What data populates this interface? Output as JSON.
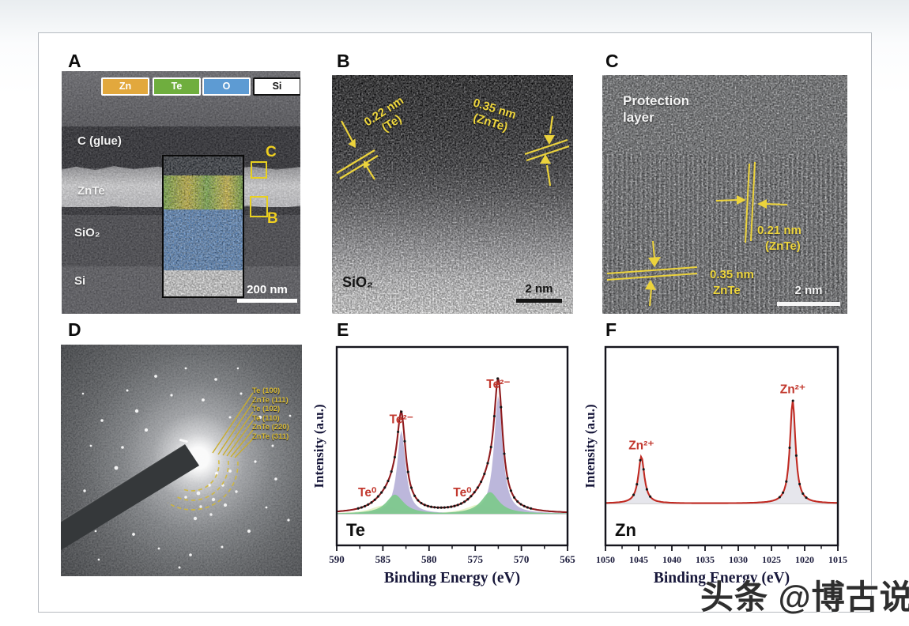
{
  "page": {
    "watermark": "头条 @博古说"
  },
  "figure": {
    "panels": {
      "a": {
        "label": "A",
        "legend": [
          {
            "label": "Zn",
            "color": "#e2a83d"
          },
          {
            "label": "Te",
            "color": "#6fae3e"
          },
          {
            "label": "O",
            "color": "#5d9bd3"
          },
          {
            "label": "Si",
            "color": "#ffffff"
          }
        ],
        "layers": [
          "C (glue)",
          "ZnTe",
          "SiO₂",
          "Si"
        ],
        "roi_top": "C",
        "roi_bottom": "B",
        "scale_bar": "200 nm"
      },
      "b": {
        "label": "B",
        "ann1_line1": "0.22 nm",
        "ann1_line2": "(Te)",
        "ann2_line1": "0.35 nm",
        "ann2_line2": "(ZnTe)",
        "corner": "SiO₂",
        "scale_bar": "2 nm"
      },
      "c": {
        "label": "C",
        "region_line1": "Protection",
        "region_line2": "layer",
        "ann1_line1": "0.21 nm",
        "ann1_line2": "(ZnTe)",
        "ann2_line1": "0.35 nm",
        "ann2_line2": "ZnTe",
        "scale_bar": "2 nm"
      },
      "d": {
        "label": "D",
        "ring_labels": [
          "Te (100)",
          "ZnTe (111)",
          "Te (102)",
          "Te (110)",
          "ZnTe (220)",
          "ZnTe (311)"
        ]
      },
      "e": {
        "label": "E"
      },
      "f": {
        "label": "F"
      }
    }
  },
  "chart_data": [
    {
      "type": "line",
      "panel": "E",
      "element_tag": "Te",
      "xlabel": "Binding Energy (eV)",
      "ylabel": "Intensity (a.u.)",
      "x_range": [
        590,
        565
      ],
      "x_ticks": [
        590,
        585,
        580,
        575,
        570,
        565
      ],
      "x_minor_step": 2.5,
      "x_axis_reversed": true,
      "ylim": [
        0,
        1
      ],
      "grid": false,
      "legend_position": "none",
      "line_color": "#8e1b1e",
      "dot_color": "#151515",
      "label_color": "#c2382e",
      "peaks": [
        {
          "species": "Te0 broad",
          "display": "",
          "center_eV": 584.9,
          "rel_height": 0.05,
          "hwhm_eV": 1.7,
          "fill": "#e3f2c6",
          "label_pos": "none"
        },
        {
          "species": "Te0 broad",
          "display": "",
          "center_eV": 574.6,
          "rel_height": 0.055,
          "hwhm_eV": 1.7,
          "fill": "#e3f2c6",
          "label_pos": "none"
        },
        {
          "species": "Te2-",
          "display": "Te²⁻",
          "center_eV": 583.0,
          "rel_height": 0.5,
          "hwhm_eV": 0.55,
          "fill": "#b6b1d8",
          "label_pos": "above"
        },
        {
          "species": "Te2-",
          "display": "Te²⁻",
          "center_eV": 572.5,
          "rel_height": 0.71,
          "hwhm_eV": 0.55,
          "fill": "#b6b1d8",
          "label_pos": "above"
        },
        {
          "species": "Te0",
          "display": "Te⁰",
          "center_eV": 583.7,
          "rel_height": 0.115,
          "hwhm_eV": 1.15,
          "fill": "#7dc98c",
          "label_pos": "left"
        },
        {
          "species": "Te0",
          "display": "Te⁰",
          "center_eV": 573.4,
          "rel_height": 0.13,
          "hwhm_eV": 1.15,
          "fill": "#7dc98c",
          "label_pos": "left"
        }
      ]
    },
    {
      "type": "line",
      "panel": "F",
      "element_tag": "Zn",
      "xlabel": "Binding Energy (eV)",
      "ylabel": "Intensity (a.u.)",
      "x_range": [
        1050,
        1015
      ],
      "x_ticks": [
        1050,
        1045,
        1040,
        1035,
        1030,
        1025,
        1020,
        1015
      ],
      "x_minor_step": 2.5,
      "x_axis_reversed": true,
      "ylim": [
        0,
        1
      ],
      "grid": false,
      "legend_position": "none",
      "line_color": "#c02a22",
      "dot_color": "#151515",
      "label_color": "#c2382e",
      "peaks": [
        {
          "species": "Zn2+",
          "display": "Zn²⁺",
          "center_eV": 1044.6,
          "rel_height": 0.3,
          "hwhm_eV": 0.55,
          "fill": "#e4e4ea",
          "label_pos": "above"
        },
        {
          "species": "Zn2+",
          "display": "Zn²⁺",
          "center_eV": 1021.8,
          "rel_height": 0.66,
          "hwhm_eV": 0.5,
          "fill": "#e4e4ea",
          "label_pos": "above"
        }
      ]
    }
  ]
}
